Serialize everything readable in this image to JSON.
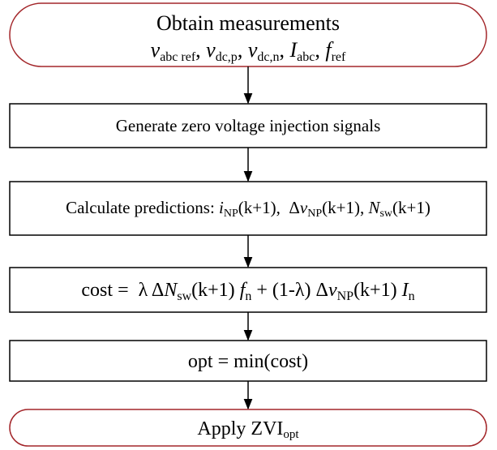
{
  "nodes": [
    {
      "title": "Obtain measurements",
      "segments": [
        "v",
        "abc ref",
        ", ",
        "v",
        "dc,p",
        ", ",
        "v",
        "dc,n",
        ", ",
        "I",
        "abc",
        ", ",
        "f",
        "ref"
      ]
    },
    {
      "segments": [
        "Generate zero voltage injection signals"
      ]
    },
    {
      "segments": [
        "Calculate predictions: ",
        "i",
        "NP",
        "(k+1),  Δ",
        "v",
        "NP",
        "(k+1), ",
        "N",
        "sw",
        "(k+1)"
      ]
    },
    {
      "segments": [
        "cost =  λ Δ",
        "N",
        "sw",
        "(k+1) ",
        "f",
        "n",
        " + (1-λ) Δ",
        "v",
        "NP",
        "(k+1) ",
        "I",
        "n"
      ]
    },
    {
      "segments": [
        "opt = min(cost)"
      ]
    },
    {
      "segments": [
        "Apply ZVI",
        "opt"
      ]
    }
  ]
}
